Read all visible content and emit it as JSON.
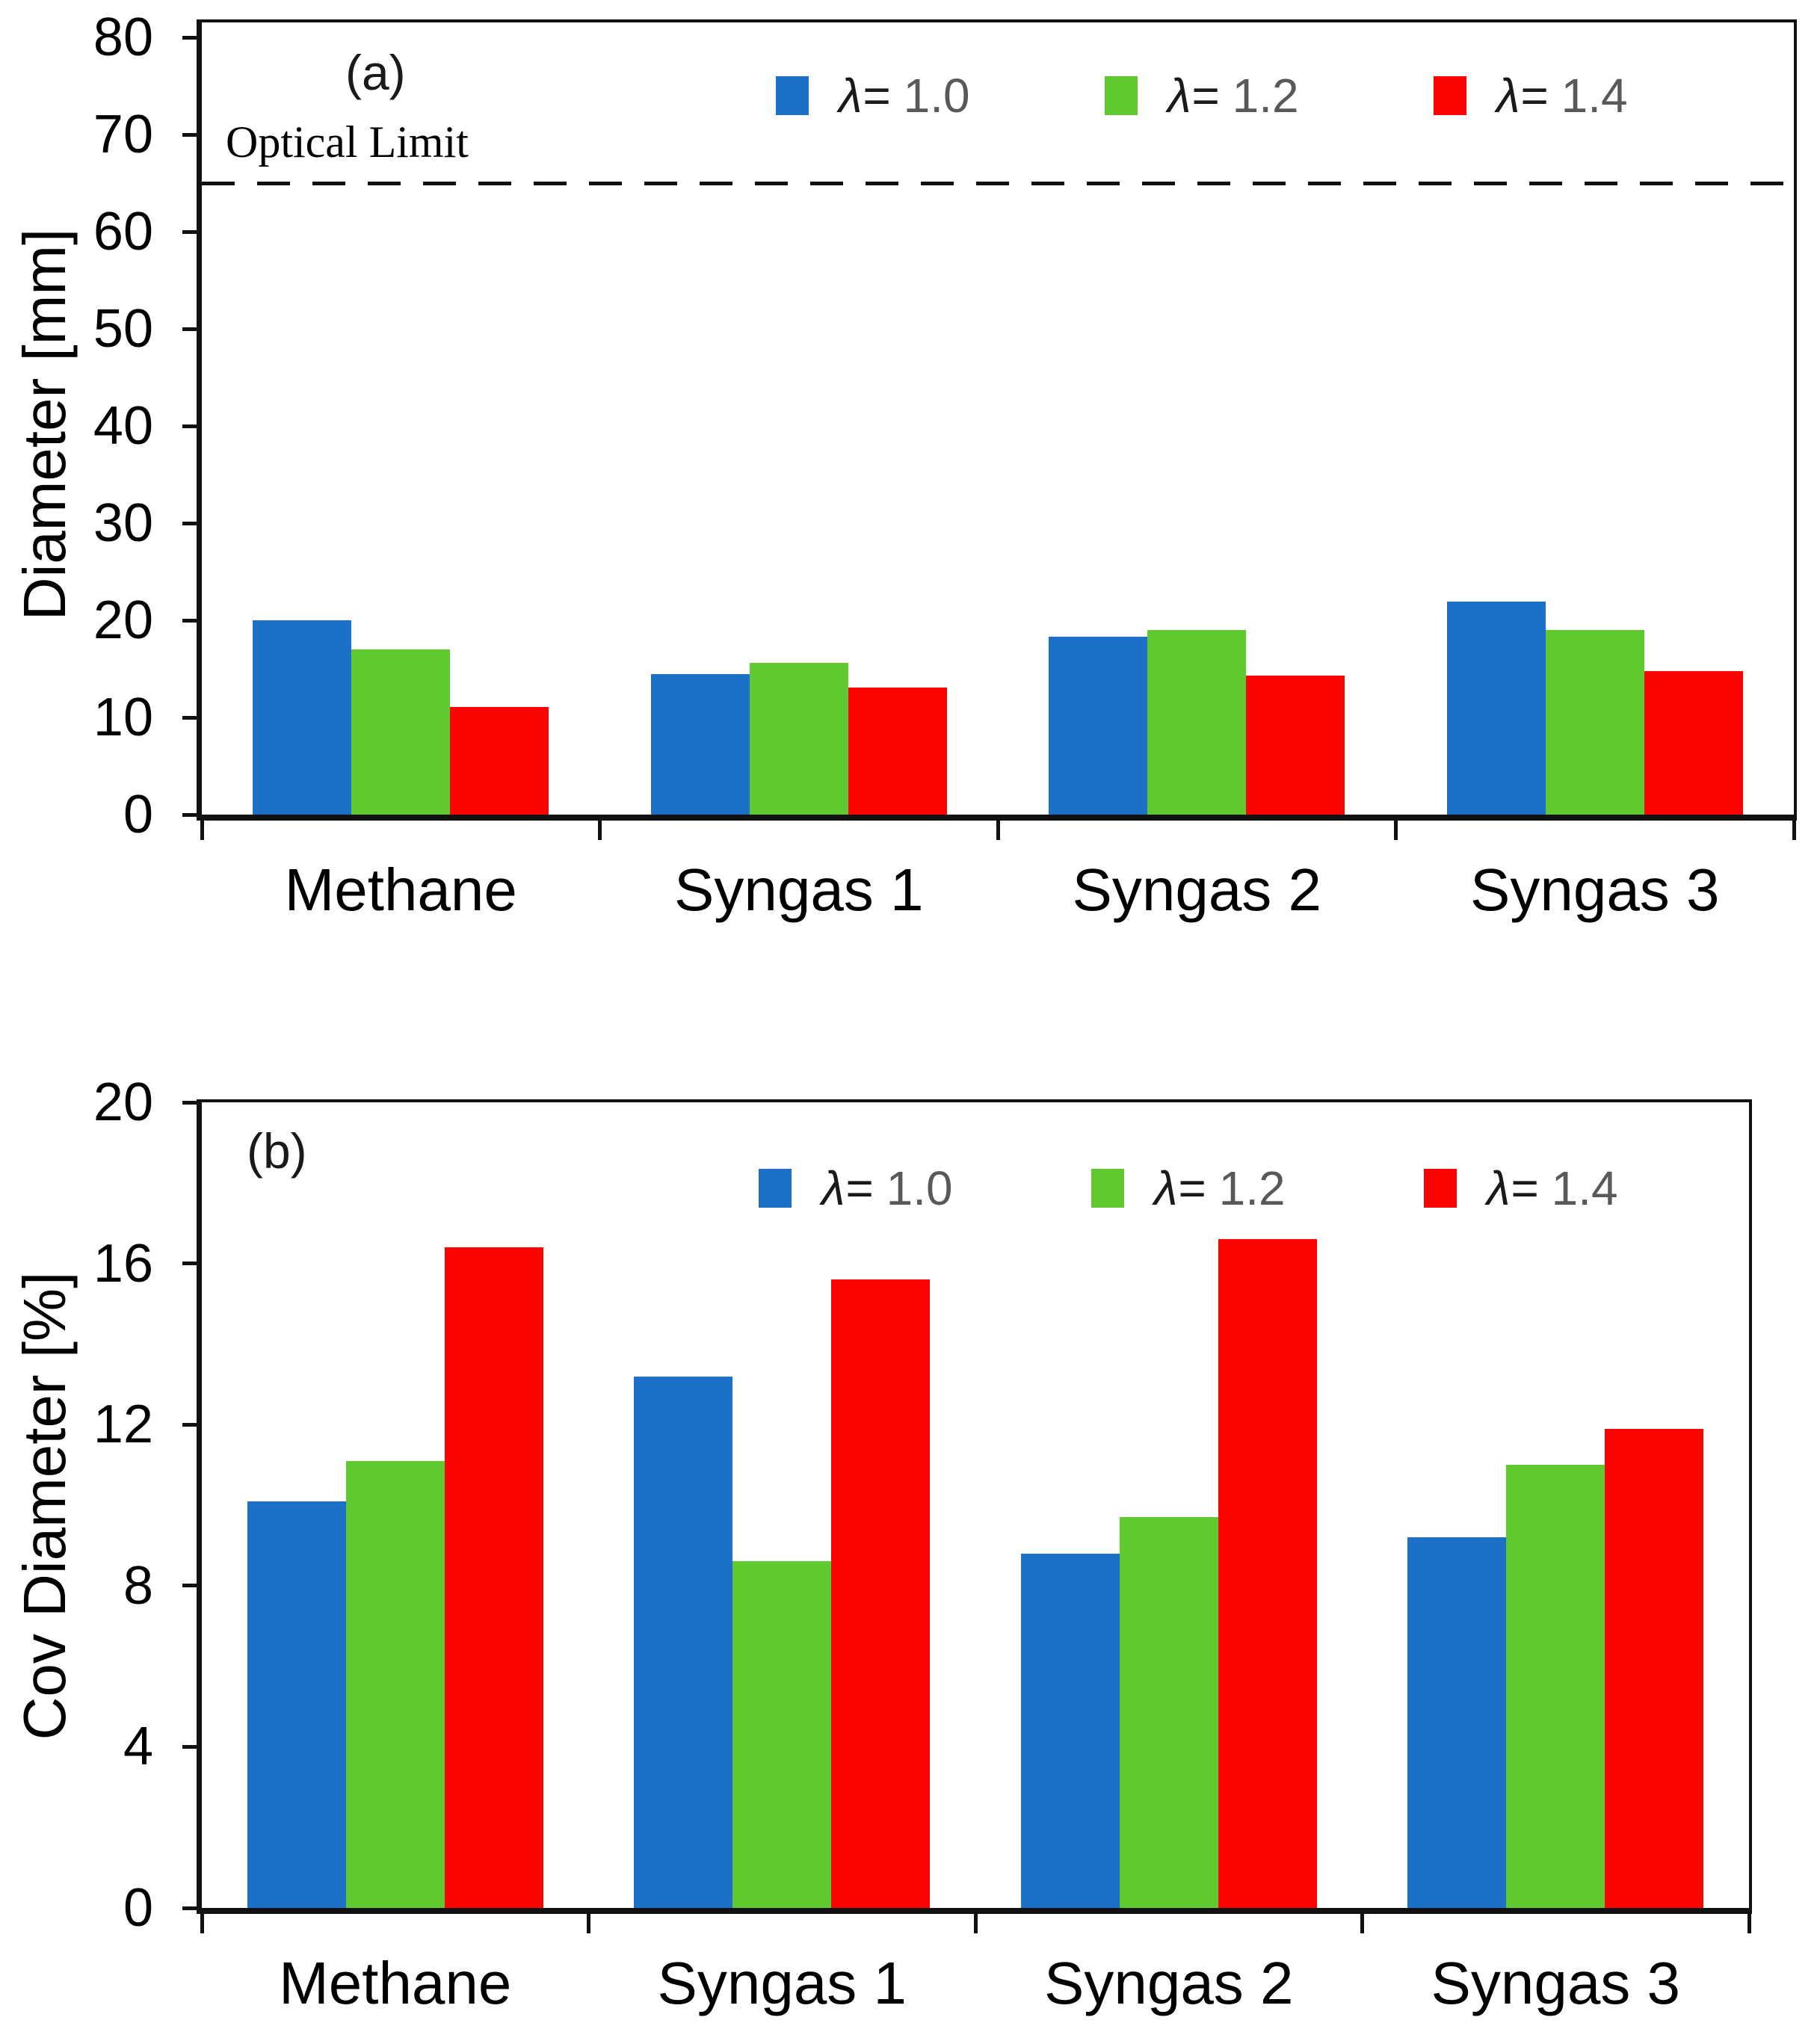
{
  "chart_data": [
    {
      "type": "bar",
      "panel_label": "(a)",
      "title": "",
      "xlabel": "",
      "ylabel": "Diameter [mm]",
      "ylim": [
        0,
        80
      ],
      "yticks": [
        80,
        70,
        60,
        50,
        40,
        30,
        20,
        10,
        0
      ],
      "grid": false,
      "legend_position": "top",
      "categories": [
        "Methane",
        "Syngas 1",
        "Syngas 2",
        "Syngas 3"
      ],
      "series": [
        {
          "name": "λ= 1.0",
          "label_symbol": "λ=",
          "label_value": "1.0",
          "color": "#1C70C8",
          "values": [
            20.0,
            14.5,
            18.3,
            21.9
          ]
        },
        {
          "name": "λ= 1.2",
          "label_symbol": "λ=",
          "label_value": "1.2",
          "color": "#5FC92F",
          "values": [
            17.0,
            15.6,
            19.0,
            19.0
          ]
        },
        {
          "name": "λ= 1.4",
          "label_symbol": "λ=",
          "label_value": "1.4",
          "color": "#FB0300",
          "values": [
            11.1,
            13.1,
            14.3,
            14.8
          ]
        }
      ],
      "annotation": {
        "label": "Optical Limit",
        "value_mm": 65,
        "line_style": "dashed"
      }
    },
    {
      "type": "bar",
      "panel_label": "(b)",
      "title": "",
      "xlabel": "",
      "ylabel": "Cov Diameter [%]",
      "ylim": [
        0,
        20
      ],
      "yticks": [
        20,
        16,
        12,
        8,
        4,
        0
      ],
      "grid": false,
      "legend_position": "top",
      "categories": [
        "Methane",
        "Syngas 1",
        "Syngas 2",
        "Syngas 3"
      ],
      "series": [
        {
          "name": "λ= 1.0",
          "label_symbol": "λ=",
          "label_value": "1.0",
          "color": "#1C70C8",
          "values": [
            10.1,
            13.2,
            8.8,
            9.2
          ]
        },
        {
          "name": "λ= 1.2",
          "label_symbol": "λ=",
          "label_value": "1.2",
          "color": "#5FC92F",
          "values": [
            11.1,
            8.6,
            9.7,
            11.0
          ]
        },
        {
          "name": "λ= 1.4",
          "label_symbol": "λ=",
          "label_value": "1.4",
          "color": "#FB0300",
          "values": [
            16.4,
            15.6,
            16.6,
            11.9
          ]
        }
      ]
    }
  ],
  "colors": {
    "bar_blue": "#1C70C8",
    "bar_green": "#5FC92F",
    "bar_red": "#FB0300",
    "legend_value_gray": "#595959",
    "axis_black": "#111111"
  }
}
